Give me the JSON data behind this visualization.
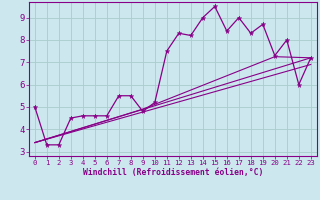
{
  "xlabel": "Windchill (Refroidissement éolien,°C)",
  "bg_color": "#cce8ee",
  "grid_color": "#aacccc",
  "line_color": "#880088",
  "xlim": [
    -0.5,
    23.5
  ],
  "ylim": [
    2.8,
    9.7
  ],
  "yticks": [
    3,
    4,
    5,
    6,
    7,
    8,
    9
  ],
  "xticks": [
    0,
    1,
    2,
    3,
    4,
    5,
    6,
    7,
    8,
    9,
    10,
    11,
    12,
    13,
    14,
    15,
    16,
    17,
    18,
    19,
    20,
    21,
    22,
    23
  ],
  "series": [
    {
      "x": [
        0,
        1,
        2,
        3,
        4,
        5,
        6,
        7,
        8,
        9,
        10,
        11,
        12,
        13,
        14,
        15,
        16,
        17,
        18,
        19,
        20,
        21,
        22,
        23
      ],
      "y": [
        5.0,
        3.3,
        3.3,
        4.5,
        4.6,
        4.6,
        4.6,
        5.5,
        5.5,
        4.8,
        5.2,
        7.5,
        8.3,
        8.2,
        9.0,
        9.5,
        8.4,
        9.0,
        8.3,
        8.7,
        7.3,
        8.0,
        6.0,
        7.2
      ],
      "marker": true
    },
    {
      "x": [
        0,
        23
      ],
      "y": [
        3.4,
        7.2
      ],
      "marker": false
    },
    {
      "x": [
        0,
        23
      ],
      "y": [
        3.4,
        6.9
      ],
      "marker": false
    },
    {
      "x": [
        0,
        9,
        20,
        23
      ],
      "y": [
        3.4,
        4.9,
        7.25,
        7.2
      ],
      "marker": false
    }
  ]
}
